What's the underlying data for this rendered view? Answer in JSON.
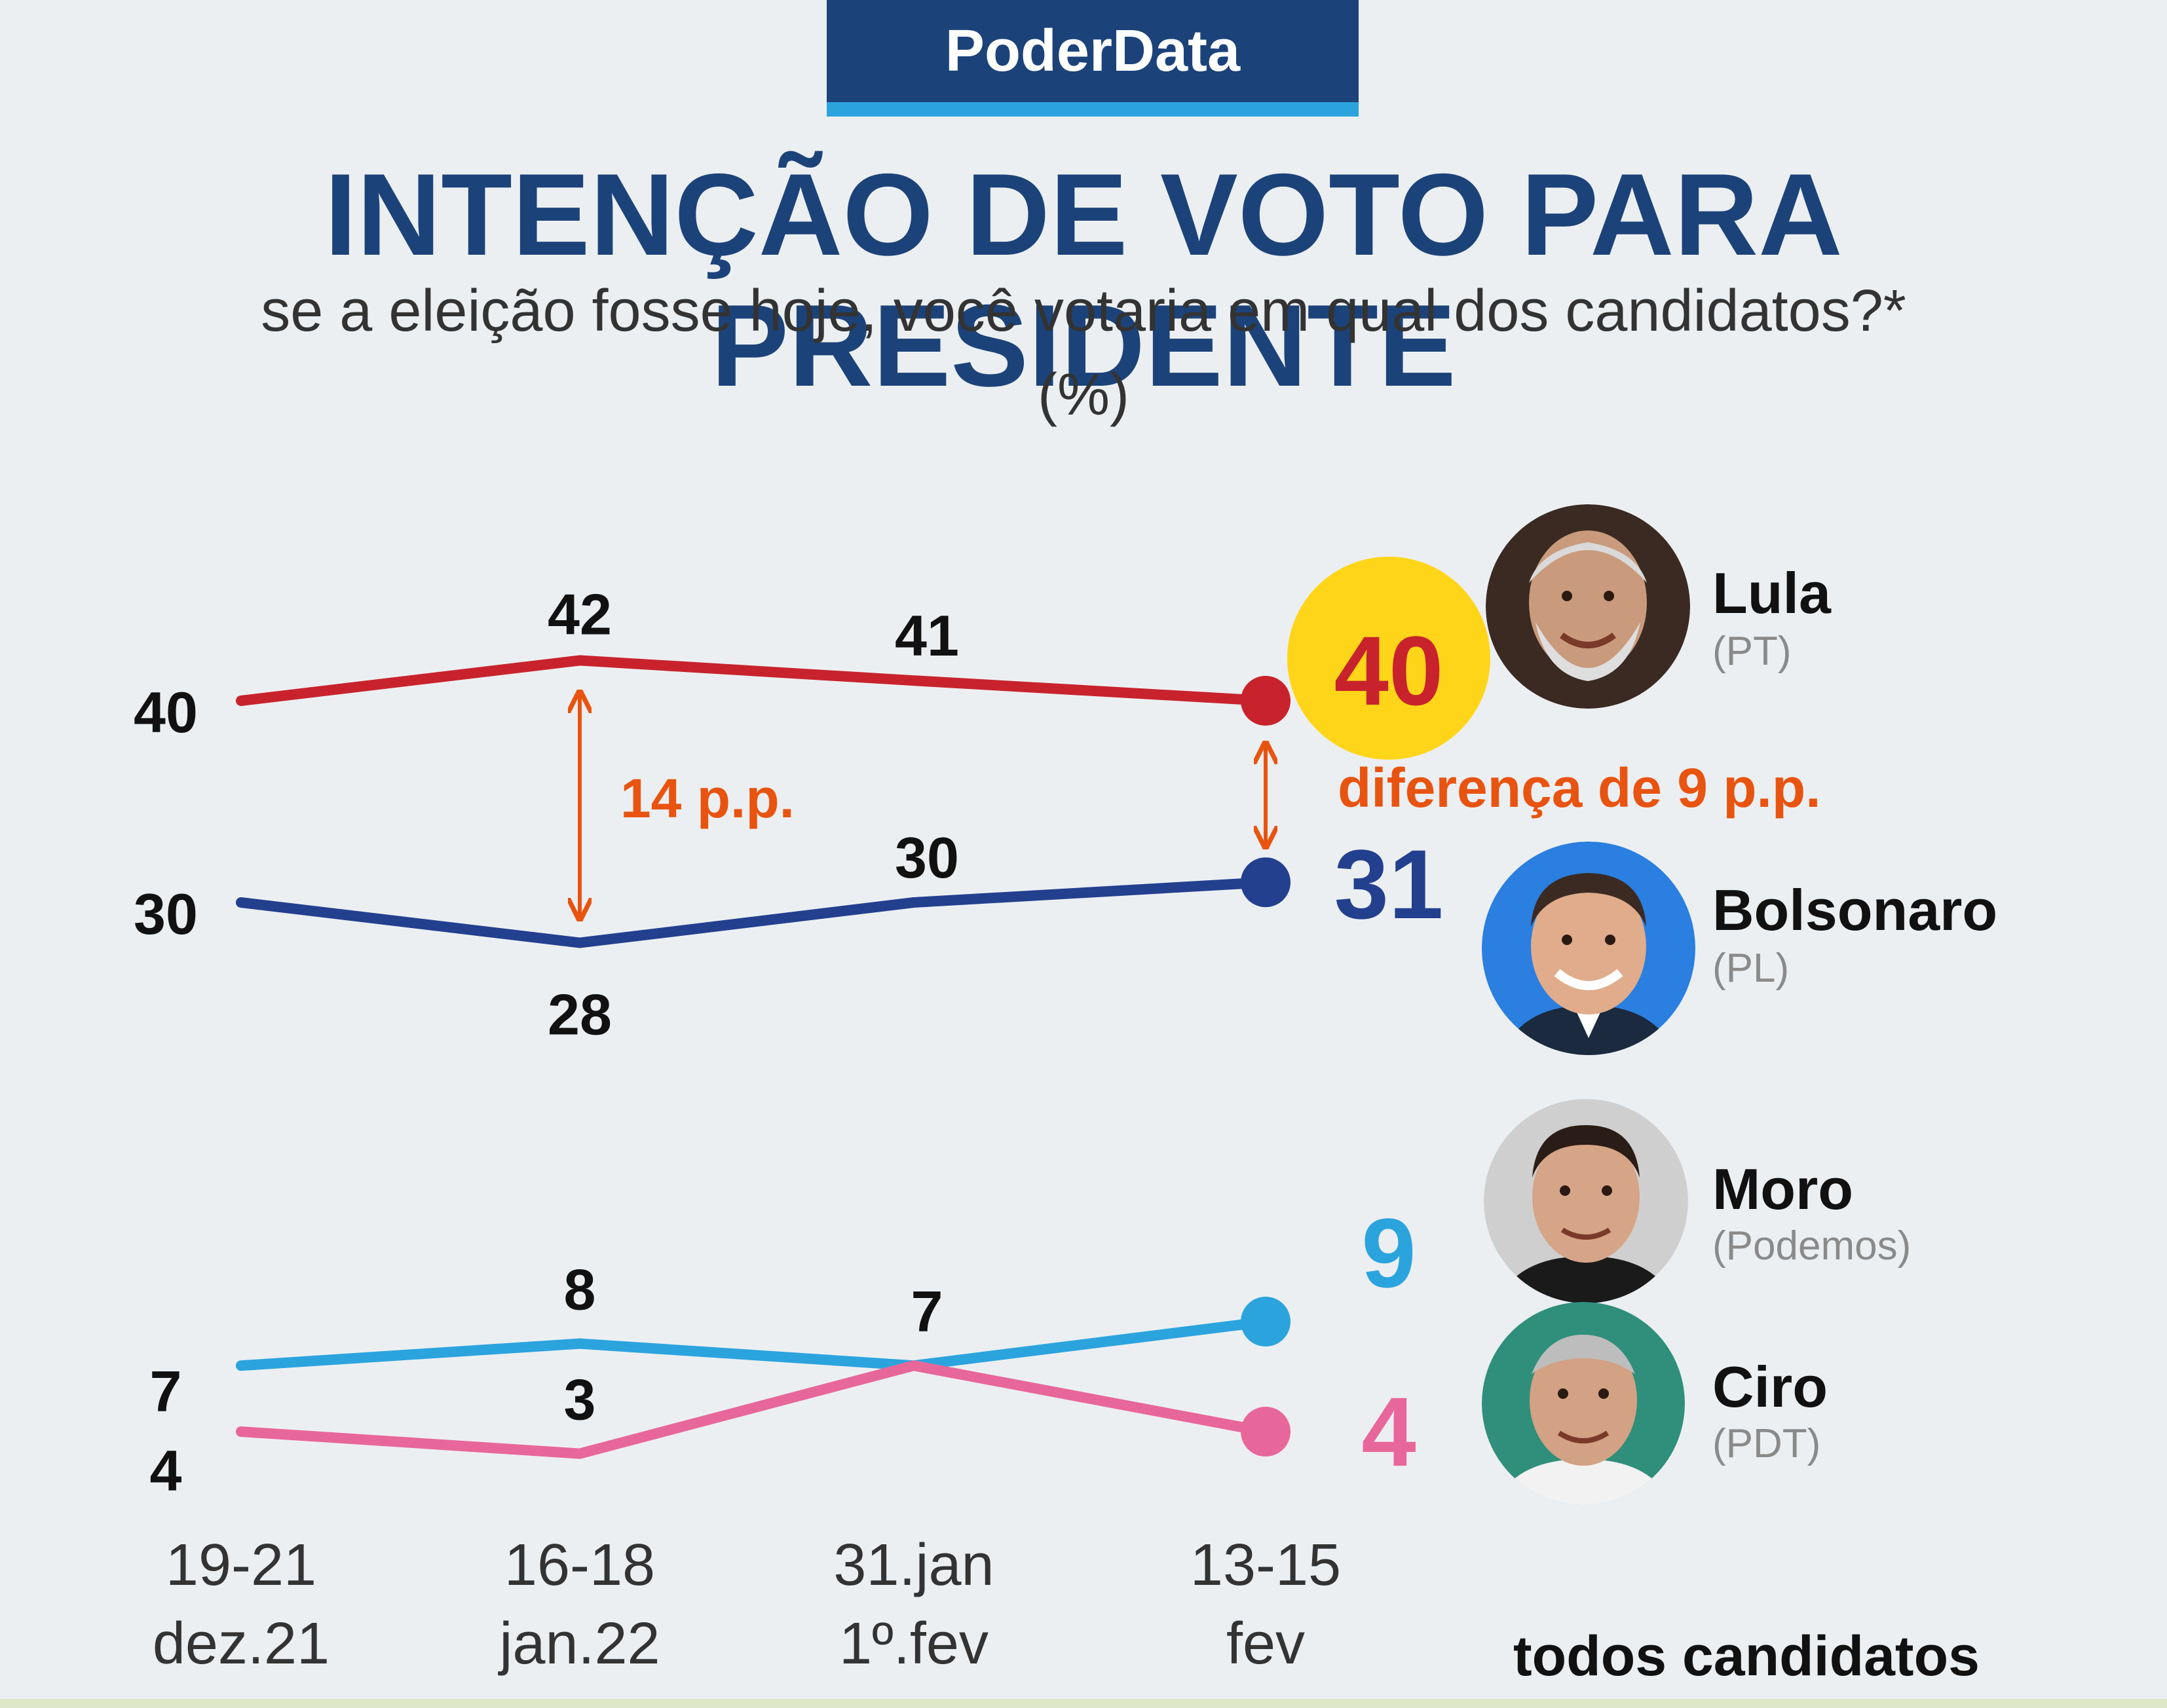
{
  "brand": "PoderData",
  "title": "INTENÇÃO DE VOTO PARA PRESIDENTE",
  "subtitle": "se a eleição fosse hoje, você votaria em qual dos candidatos?*",
  "unit": "(%)",
  "footer_note": "todos candidatos",
  "chart_data": {
    "type": "line",
    "title": "INTENÇÃO DE VOTO PARA PRESIDENTE",
    "ylabel": "%",
    "x_labels": [
      {
        "line1": "19-21",
        "line2": "dez.21"
      },
      {
        "line1": "16-18",
        "line2": "jan.22"
      },
      {
        "line1": "31.jan",
        "line2": "1º.fev"
      },
      {
        "line1": "13-15",
        "line2": "fev"
      }
    ],
    "series": [
      {
        "name": "Lula",
        "party": "(PT)",
        "color": "#c8232c",
        "values": [
          40,
          42,
          41,
          40
        ]
      },
      {
        "name": "Bolsonaro",
        "party": "(PL)",
        "color": "#23408f",
        "values": [
          30,
          28,
          30,
          31
        ]
      },
      {
        "name": "Moro",
        "party": "(Podemos)",
        "color": "#2ba4de",
        "values": [
          7,
          8,
          7,
          9
        ]
      },
      {
        "name": "Ciro",
        "party": "(PDT)",
        "color": "#e8679a",
        "values": [
          4,
          3,
          7,
          4
        ]
      }
    ],
    "annotations": {
      "gap_label": "14 p.p.",
      "difference_label": "diferença de 9 p.p.",
      "arrow_color": "#e85410",
      "highlight_color": "#ffd51a"
    }
  }
}
